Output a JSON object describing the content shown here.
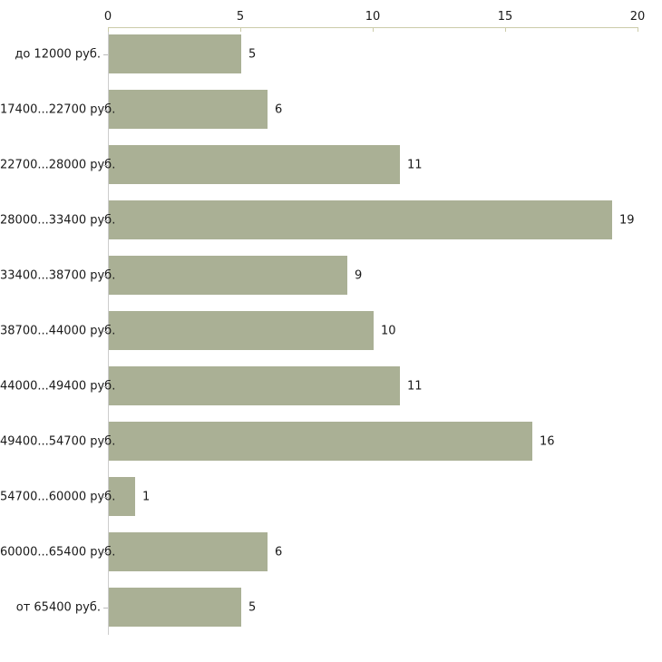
{
  "chart_data": {
    "type": "bar",
    "orientation": "horizontal",
    "title": "",
    "categories": [
      "до 12000 руб.",
      "17400...22700 руб.",
      "22700...28000 руб.",
      "28000...33400 руб.",
      "33400...38700 руб.",
      "38700...44000 руб.",
      "44000...49400 руб.",
      "49400...54700 руб.",
      "54700...60000 руб.",
      "60000...65400 руб.",
      "от 65400 руб."
    ],
    "values": [
      5,
      6,
      11,
      19,
      9,
      10,
      11,
      16,
      1,
      6,
      5
    ],
    "value_labels": [
      "5",
      "6",
      "11",
      "19",
      "9",
      "10",
      "11",
      "16",
      "1",
      "6",
      "5"
    ],
    "x_axis": {
      "position": "top",
      "min": 0,
      "max": 20,
      "ticks": [
        0,
        5,
        10,
        15,
        20
      ],
      "tick_labels": [
        "0",
        "5",
        "10",
        "15",
        "20"
      ]
    },
    "grid": false,
    "legend": false,
    "colors": {
      "bar": "#aab095",
      "value_axis_line": "#ccccaa",
      "category_axis_line": "#cccccc",
      "category_tick": "#bbbbbb",
      "text": "#1a1a1a"
    }
  }
}
